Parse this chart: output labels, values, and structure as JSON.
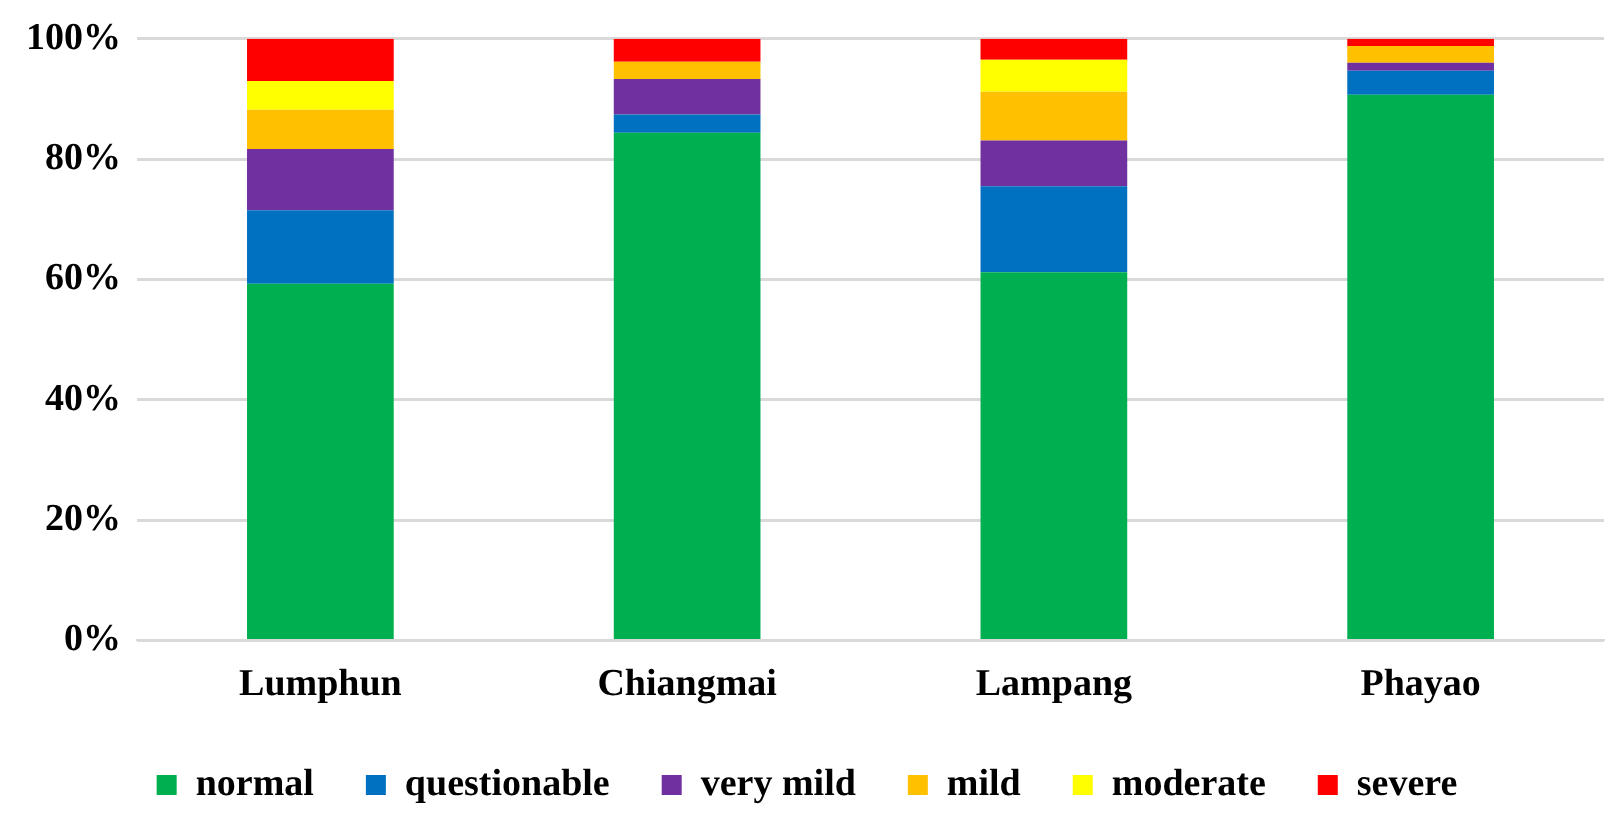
{
  "chart_data": {
    "type": "bar",
    "stacked": true,
    "categories": [
      "Lumphun",
      "Chiangmai",
      "Lampang",
      "Phayao"
    ],
    "series": [
      {
        "name": "normal",
        "color": "#00b050",
        "values": [
          59.3,
          84.4,
          61.2,
          90.7
        ]
      },
      {
        "name": "questionable",
        "color": "#0070c0",
        "values": [
          12.2,
          3.0,
          14.3,
          4.0
        ]
      },
      {
        "name": "very mild",
        "color": "#7030a0",
        "values": [
          10.2,
          5.9,
          7.6,
          1.3
        ]
      },
      {
        "name": "mild",
        "color": "#ffc000",
        "values": [
          6.5,
          2.9,
          8.1,
          2.8
        ]
      },
      {
        "name": "moderate",
        "color": "#ffff00",
        "values": [
          4.8,
          0,
          5.3,
          0
        ]
      },
      {
        "name": "severe",
        "color": "#ff0000",
        "values": [
          7.0,
          3.8,
          3.5,
          1.2
        ]
      }
    ],
    "ylim": [
      0,
      100
    ],
    "yticks": [
      {
        "value": 0,
        "label": "0%"
      },
      {
        "value": 20,
        "label": "20%"
      },
      {
        "value": 40,
        "label": "40%"
      },
      {
        "value": 60,
        "label": "60%"
      },
      {
        "value": 80,
        "label": "80%"
      },
      {
        "value": 100,
        "label": "100%"
      }
    ],
    "grid": "y",
    "legend": "bottom"
  }
}
